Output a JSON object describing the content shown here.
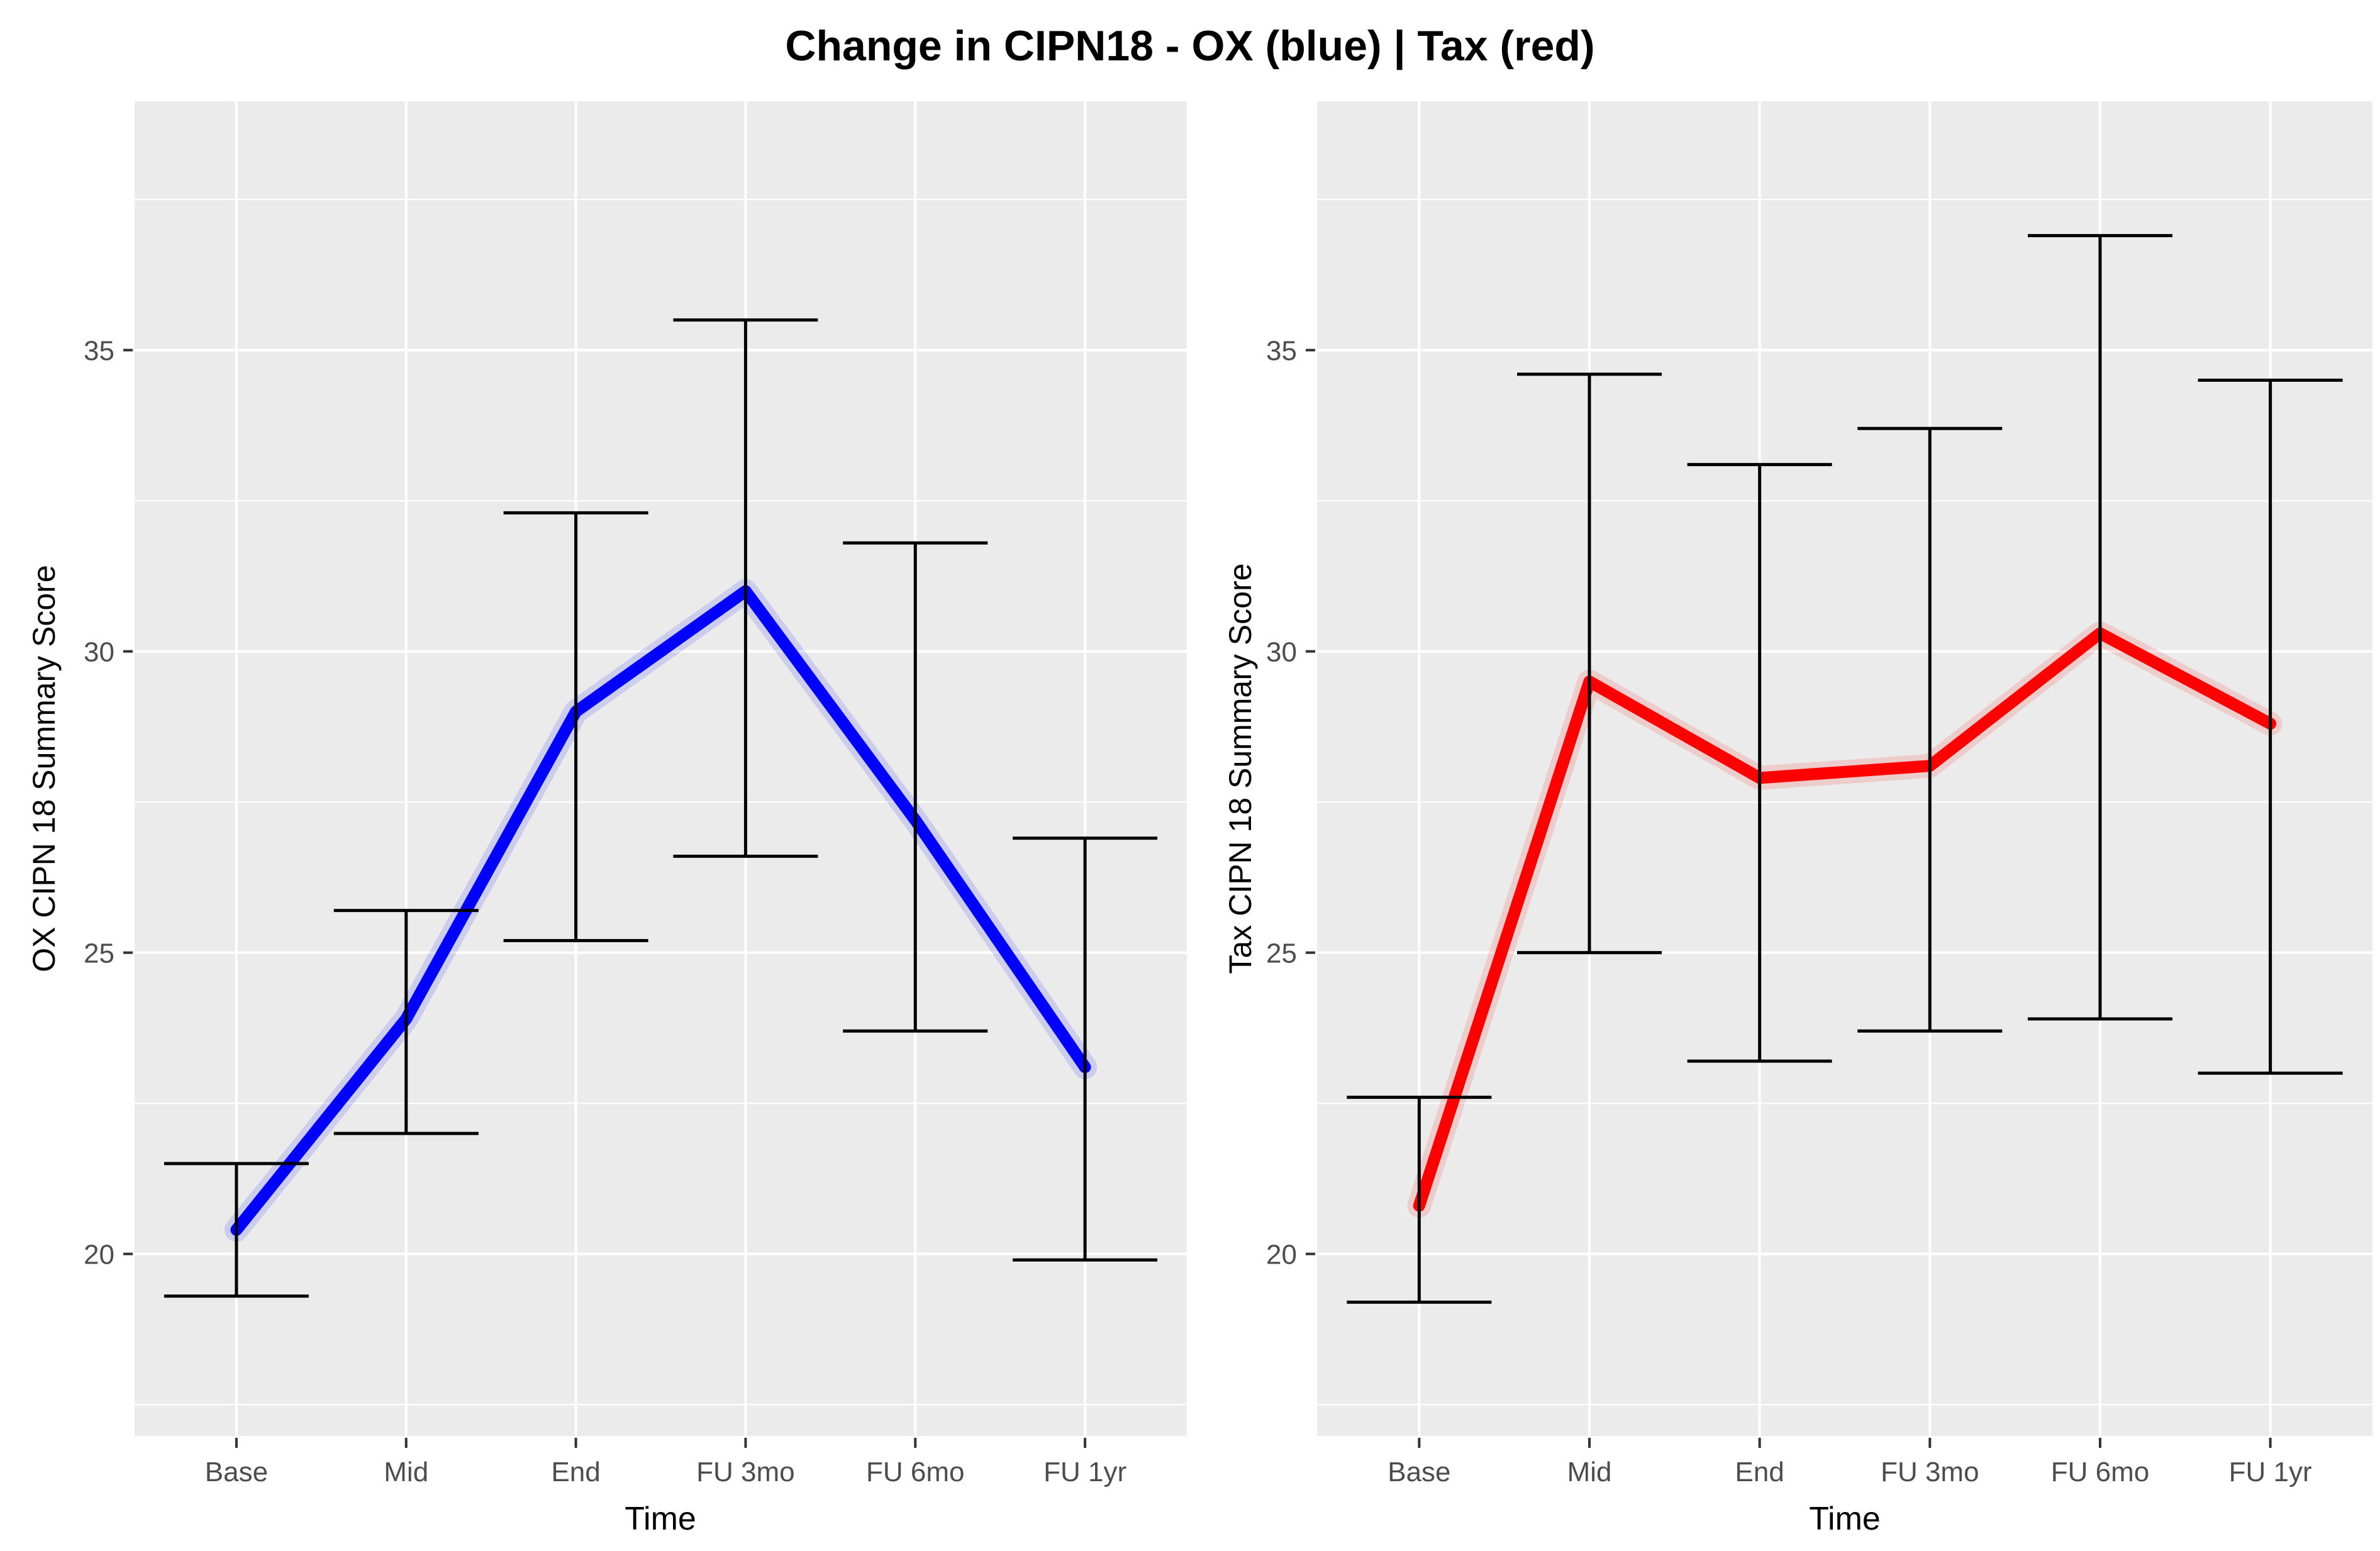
{
  "title": "Change in CIPN18 - OX (blue) | Tax (red)",
  "colors": {
    "panel_background": "#EBEBEB",
    "grid": "#FFFFFF",
    "tick_mark": "#333333",
    "tick_text": "#4D4D4D",
    "axis_title": "#000000",
    "title_text": "#000000",
    "error_bar": "#000000",
    "ox_line": "#0000FF",
    "tax_line": "#FF0000"
  },
  "chart_data": [
    {
      "type": "line",
      "name": "OX",
      "ylabel": "OX CIPN 18 Summary Score",
      "xlabel": "Time",
      "line_color": "#0000FF",
      "categories": [
        "Base",
        "Mid",
        "End",
        "FU 3mo",
        "FU 6mo",
        "FU 1yr"
      ],
      "means": [
        20.4,
        23.9,
        29.0,
        31.0,
        27.2,
        23.1
      ],
      "error_upper": [
        21.5,
        25.7,
        32.3,
        35.5,
        31.8,
        26.9
      ],
      "error_lower": [
        19.3,
        22.0,
        25.2,
        26.6,
        23.7,
        19.9
      ],
      "y_ticks": [
        20,
        25,
        30,
        35
      ],
      "y_minor": [
        17.5,
        22.5,
        27.5,
        32.5,
        37.5
      ],
      "ylim": [
        16.98,
        39.13
      ],
      "grid": true,
      "legend": "none"
    },
    {
      "type": "line",
      "name": "Tax",
      "ylabel": "Tax CIPN 18 Summary Score",
      "xlabel": "Time",
      "line_color": "#FF0000",
      "categories": [
        "Base",
        "Mid",
        "End",
        "FU 3mo",
        "FU 6mo",
        "FU 1yr"
      ],
      "means": [
        20.8,
        29.5,
        27.9,
        28.1,
        30.3,
        28.8
      ],
      "error_upper": [
        22.6,
        34.6,
        33.1,
        33.7,
        36.9,
        34.5
      ],
      "error_lower": [
        19.2,
        25.0,
        23.2,
        23.7,
        23.9,
        23.0
      ],
      "y_ticks": [
        20,
        25,
        30,
        35
      ],
      "y_minor": [
        17.5,
        22.5,
        27.5,
        32.5,
        37.5
      ],
      "ylim": [
        16.98,
        39.13
      ],
      "grid": true,
      "legend": "none"
    }
  ]
}
